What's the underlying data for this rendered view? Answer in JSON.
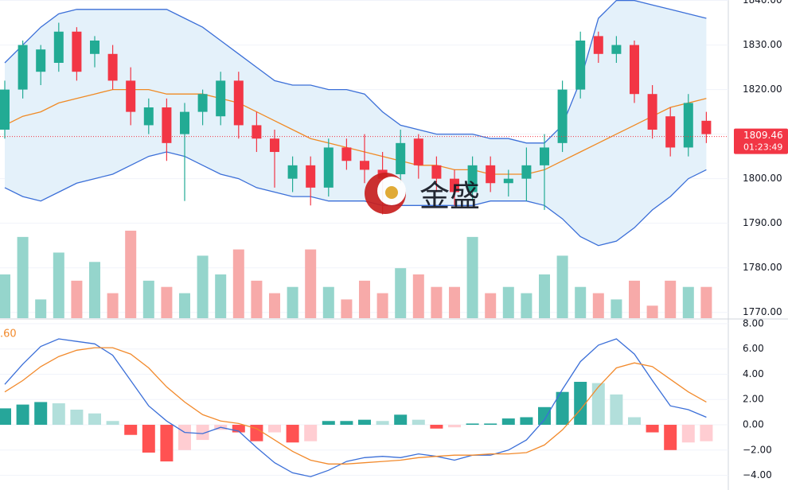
{
  "watermark": "金盛",
  "chart_data": [
    {
      "type": "candlestick",
      "open": [
        1811,
        1820,
        1824,
        1826,
        1833,
        1828,
        1828,
        1822,
        1812,
        1816,
        1810,
        1815,
        1814,
        1822,
        1812,
        1809,
        1800,
        1803,
        1798,
        1807,
        1804,
        1802,
        1801,
        1809,
        1803,
        1800,
        1797,
        1803,
        1799,
        1800,
        1803,
        1808,
        1820,
        1832,
        1828,
        1830,
        1819,
        1814,
        1807,
        1813
      ],
      "high": [
        1822,
        1831,
        1830,
        1835,
        1834,
        1832,
        1830,
        1825,
        1818,
        1818,
        1817,
        1820,
        1824,
        1824,
        1815,
        1811,
        1805,
        1805,
        1809,
        1809,
        1810,
        1806,
        1811,
        1810,
        1805,
        1802,
        1805,
        1805,
        1802,
        1807,
        1810,
        1822,
        1833,
        1833,
        1832,
        1831,
        1821,
        1816,
        1819,
        1815
      ],
      "low": [
        1809,
        1818,
        1821,
        1824,
        1822,
        1825,
        1820,
        1812,
        1810,
        1804,
        1795,
        1812,
        1812,
        1809,
        1806,
        1798,
        1797,
        1794,
        1796,
        1802,
        1799,
        1792,
        1799,
        1800,
        1797,
        1794,
        1795,
        1797,
        1796,
        1795,
        1793,
        1806,
        1818,
        1826,
        1826,
        1817,
        1809,
        1805,
        1805,
        1808
      ],
      "close": [
        1820,
        1830,
        1829,
        1833,
        1824,
        1831,
        1822,
        1815,
        1816,
        1808,
        1815,
        1819,
        1822,
        1812,
        1809,
        1806,
        1803,
        1798,
        1807,
        1804,
        1802,
        1800,
        1808,
        1803,
        1800,
        1797,
        1803,
        1799,
        1800,
        1803,
        1807,
        1820,
        1831,
        1828,
        1830,
        1819,
        1811,
        1807,
        1817,
        1810
      ],
      "up_color": "#22ab94",
      "down_color": "#f23645",
      "bollinger": {
        "upper": [
          1826,
          1830,
          1834,
          1837,
          1838,
          1838,
          1838,
          1838,
          1838,
          1838,
          1836,
          1834,
          1831,
          1828,
          1825,
          1822,
          1821,
          1821,
          1820,
          1820,
          1819,
          1815,
          1812,
          1811,
          1810,
          1810,
          1810,
          1809,
          1809,
          1808,
          1808,
          1812,
          1822,
          1836,
          1840,
          1840,
          1839,
          1838,
          1837,
          1836
        ],
        "middle": [
          1812,
          1814,
          1815,
          1817,
          1818,
          1819,
          1820,
          1820,
          1820,
          1819,
          1819,
          1819,
          1818,
          1817,
          1815,
          1813,
          1811,
          1809,
          1808,
          1807,
          1806,
          1805,
          1804,
          1803,
          1803,
          1802,
          1802,
          1801,
          1801,
          1801,
          1802,
          1804,
          1806,
          1808,
          1810,
          1812,
          1814,
          1816,
          1817,
          1818
        ],
        "lower": [
          1798,
          1796,
          1795,
          1797,
          1799,
          1800,
          1801,
          1803,
          1805,
          1806,
          1805,
          1803,
          1801,
          1800,
          1798,
          1797,
          1796,
          1796,
          1795,
          1795,
          1795,
          1794,
          1794,
          1794,
          1794,
          1794,
          1794,
          1795,
          1795,
          1795,
          1794,
          1791,
          1787,
          1785,
          1786,
          1789,
          1793,
          1796,
          1800,
          1802
        ],
        "line_color": "#3b6fd8",
        "middle_color": "#f08a24",
        "fill": "#e4f1fa"
      },
      "volume": {
        "values": [
          14,
          26,
          6,
          21,
          12,
          18,
          8,
          28,
          12,
          10,
          8,
          20,
          14,
          22,
          12,
          8,
          10,
          22,
          10,
          6,
          12,
          8,
          16,
          14,
          10,
          10,
          26,
          8,
          10,
          8,
          14,
          20,
          10,
          8,
          6,
          12,
          4,
          12,
          10,
          10
        ],
        "up_color": "#95d5cc",
        "down_color": "#f7aaa9"
      },
      "last_price": 1809.46,
      "countdown": "01:23:49",
      "last_color": "#f23645",
      "ylim": [
        1768.7,
        1840.1
      ],
      "yticks": [
        {
          "value": 1770,
          "label": "1770.00"
        },
        {
          "value": 1780,
          "label": "1780.00"
        },
        {
          "value": 1790,
          "label": "1790.00"
        },
        {
          "value": 1800,
          "label": "1800.00"
        },
        {
          "value": 1810,
          "label": "1810.00"
        },
        {
          "value": 1820,
          "label": "1820.00"
        },
        {
          "value": 1830,
          "label": "1830.00"
        },
        {
          "value": 1840,
          "label": "1840.00"
        }
      ],
      "grid": true
    },
    {
      "type": "macd",
      "label": ".60",
      "macd": [
        3.2,
        4.8,
        6.2,
        6.8,
        6.6,
        6.4,
        5.5,
        3.5,
        1.5,
        0.3,
        -0.6,
        -0.7,
        -0.2,
        -0.5,
        -1.8,
        -3.0,
        -3.8,
        -4.1,
        -3.6,
        -2.9,
        -2.6,
        -2.5,
        -2.6,
        -2.3,
        -2.5,
        -2.8,
        -2.4,
        -2.4,
        -2.0,
        -1.2,
        0.4,
        2.8,
        5.0,
        6.3,
        6.8,
        5.6,
        3.5,
        1.5,
        1.2,
        0.6
      ],
      "signal": [
        2.6,
        3.5,
        4.6,
        5.4,
        5.9,
        6.1,
        6.1,
        5.6,
        4.5,
        3.0,
        1.8,
        0.8,
        0.3,
        0.1,
        -0.3,
        -1.2,
        -2.1,
        -2.8,
        -3.1,
        -3.1,
        -3.0,
        -2.9,
        -2.8,
        -2.6,
        -2.5,
        -2.4,
        -2.4,
        -2.3,
        -2.3,
        -2.2,
        -1.6,
        -0.4,
        1.2,
        3.0,
        4.5,
        4.9,
        4.6,
        3.6,
        2.6,
        1.8
      ],
      "histogram": [
        1.3,
        1.6,
        1.8,
        1.7,
        1.2,
        0.9,
        0.3,
        -0.8,
        -2.2,
        -2.9,
        -2.0,
        -1.2,
        -0.4,
        -0.6,
        -1.3,
        -0.6,
        -1.4,
        -1.3,
        0.3,
        0.3,
        0.4,
        0.3,
        0.8,
        0.4,
        -0.3,
        -0.2,
        0.1,
        0.1,
        0.5,
        0.6,
        1.4,
        2.6,
        3.4,
        3.3,
        2.4,
        0.6,
        -0.6,
        -2.0,
        -1.4,
        -1.3
      ],
      "macd_color": "#3b6fd8",
      "signal_color": "#f28a2c",
      "hist_colors": {
        "up_grow": "#26a69a",
        "up_fall": "#b2dfdb",
        "down_grow": "#ff5252",
        "down_fall": "#ffcdd2"
      },
      "ylim": [
        -5.16,
        8.31
      ],
      "yticks": [
        {
          "value": -4,
          "label": "−4.00"
        },
        {
          "value": -2,
          "label": "−2.00"
        },
        {
          "value": 0,
          "label": "0.00"
        },
        {
          "value": 2,
          "label": "2.00"
        },
        {
          "value": 4,
          "label": "4.00"
        },
        {
          "value": 6,
          "label": "6.00"
        },
        {
          "value": 8,
          "label": "8.00"
        }
      ],
      "grid": true
    }
  ]
}
